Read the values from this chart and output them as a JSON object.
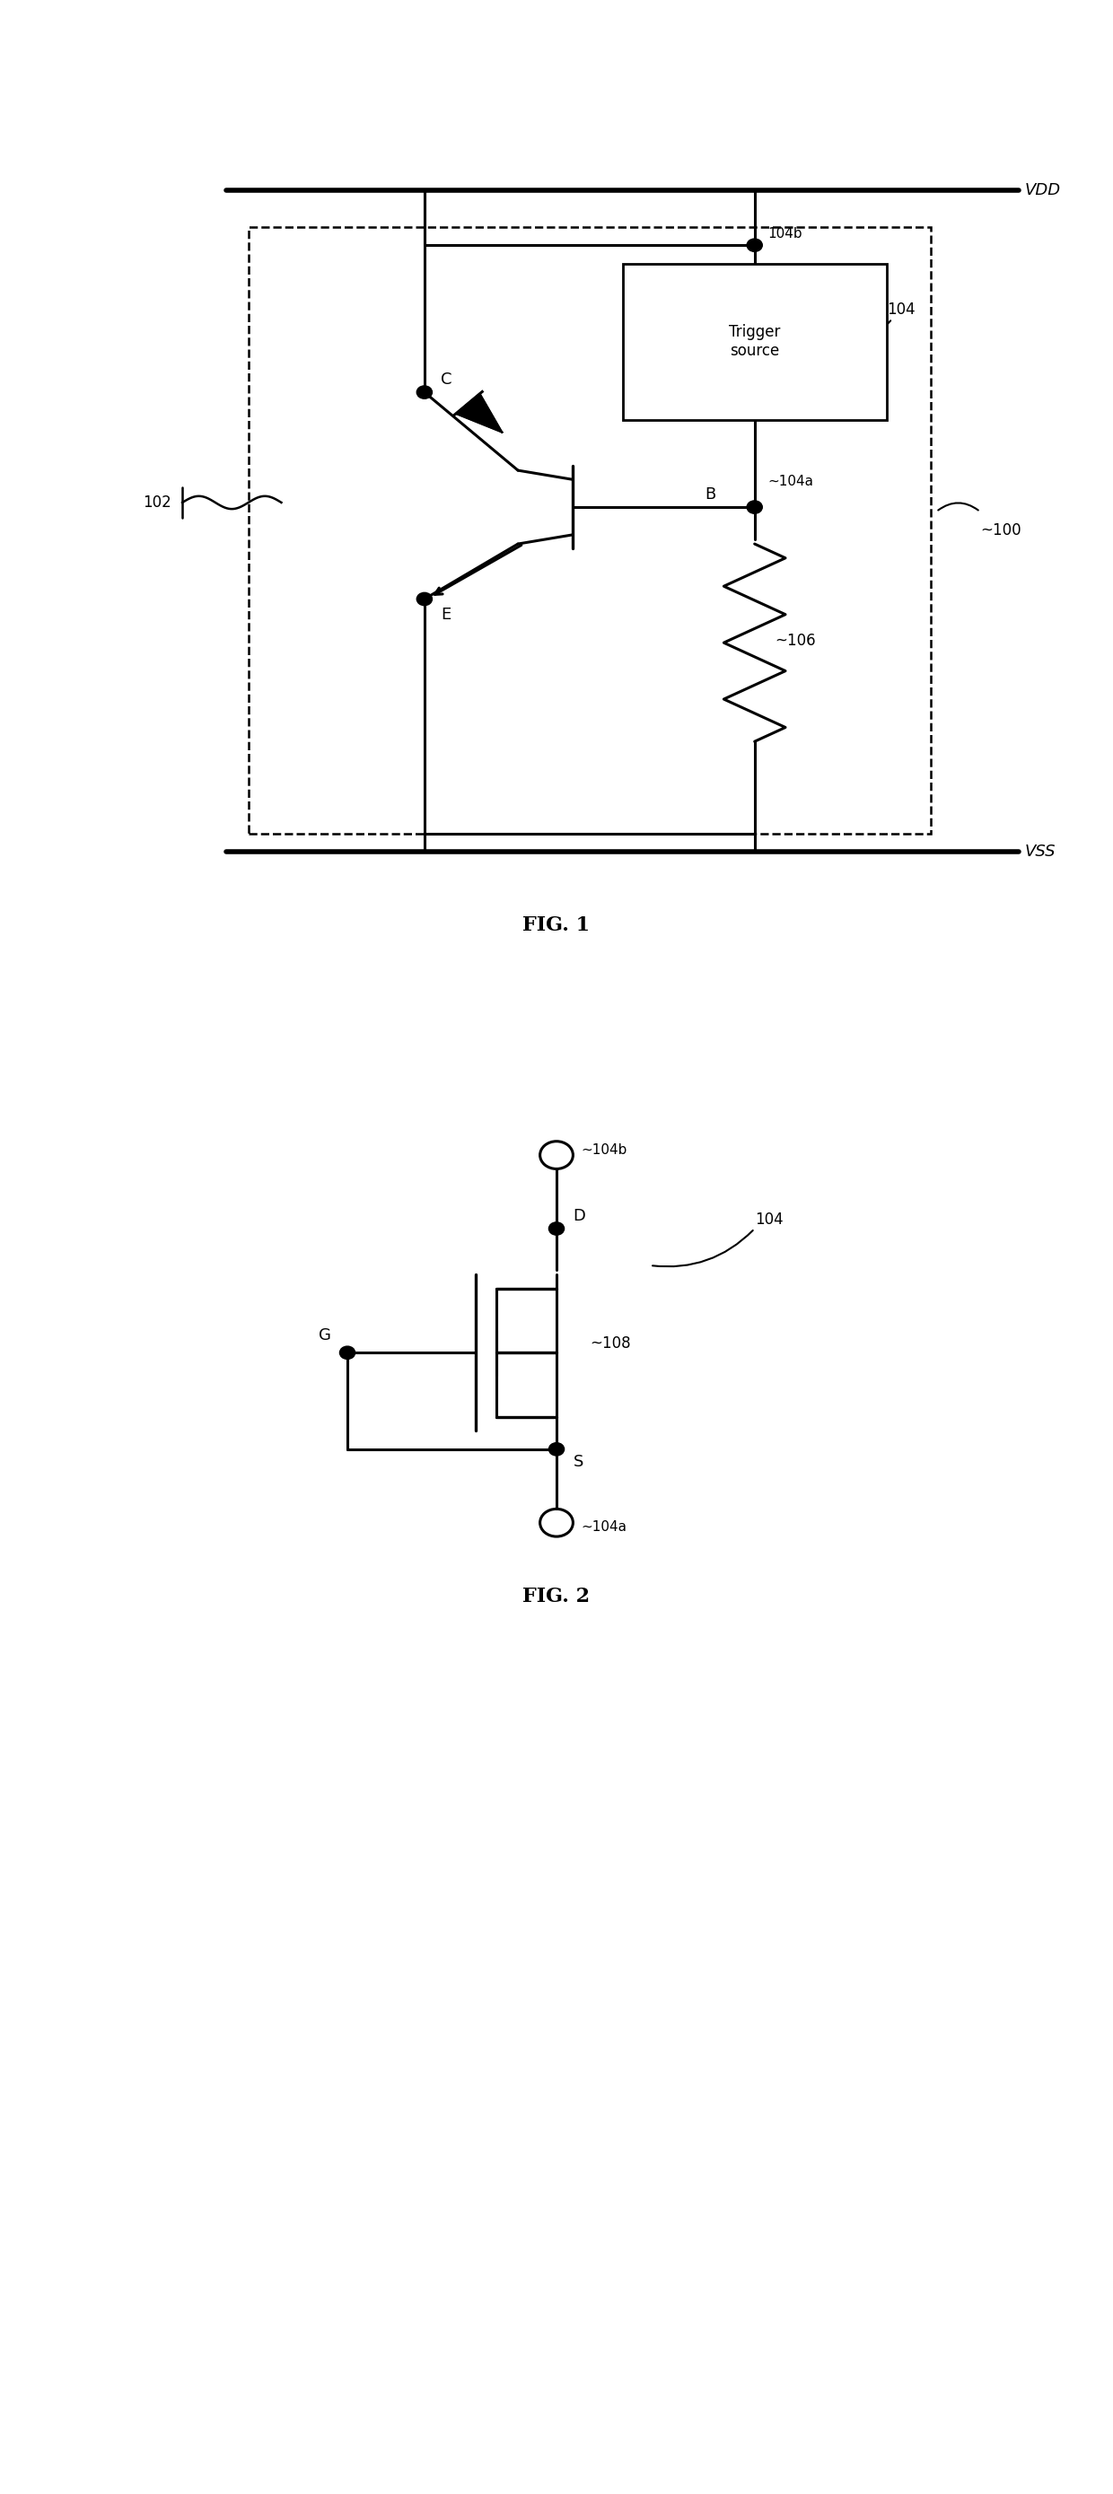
{
  "fig_width": 12.4,
  "fig_height": 27.79,
  "bg_color": "#ffffff",
  "line_color": "#000000",
  "fig1_title": "FIG. 1",
  "fig2_title": "FIG. 2",
  "lw": 2.2,
  "lw_thick": 4.0,
  "dot_r": 0.07,
  "labels": {
    "VDD": "VDD",
    "VSS": "VSS",
    "C": "C",
    "B": "B",
    "E": "E",
    "102": "102",
    "100": "~100",
    "104": "104",
    "104a_fig1": "~104a",
    "104b_fig1": "104b",
    "106": "~106",
    "trigger": "Trigger\nsource",
    "D": "D",
    "G": "G",
    "S": "S",
    "108": "~108",
    "104_fig2": "104",
    "104a_fig2": "~104a",
    "104b_fig2": "~104b"
  }
}
